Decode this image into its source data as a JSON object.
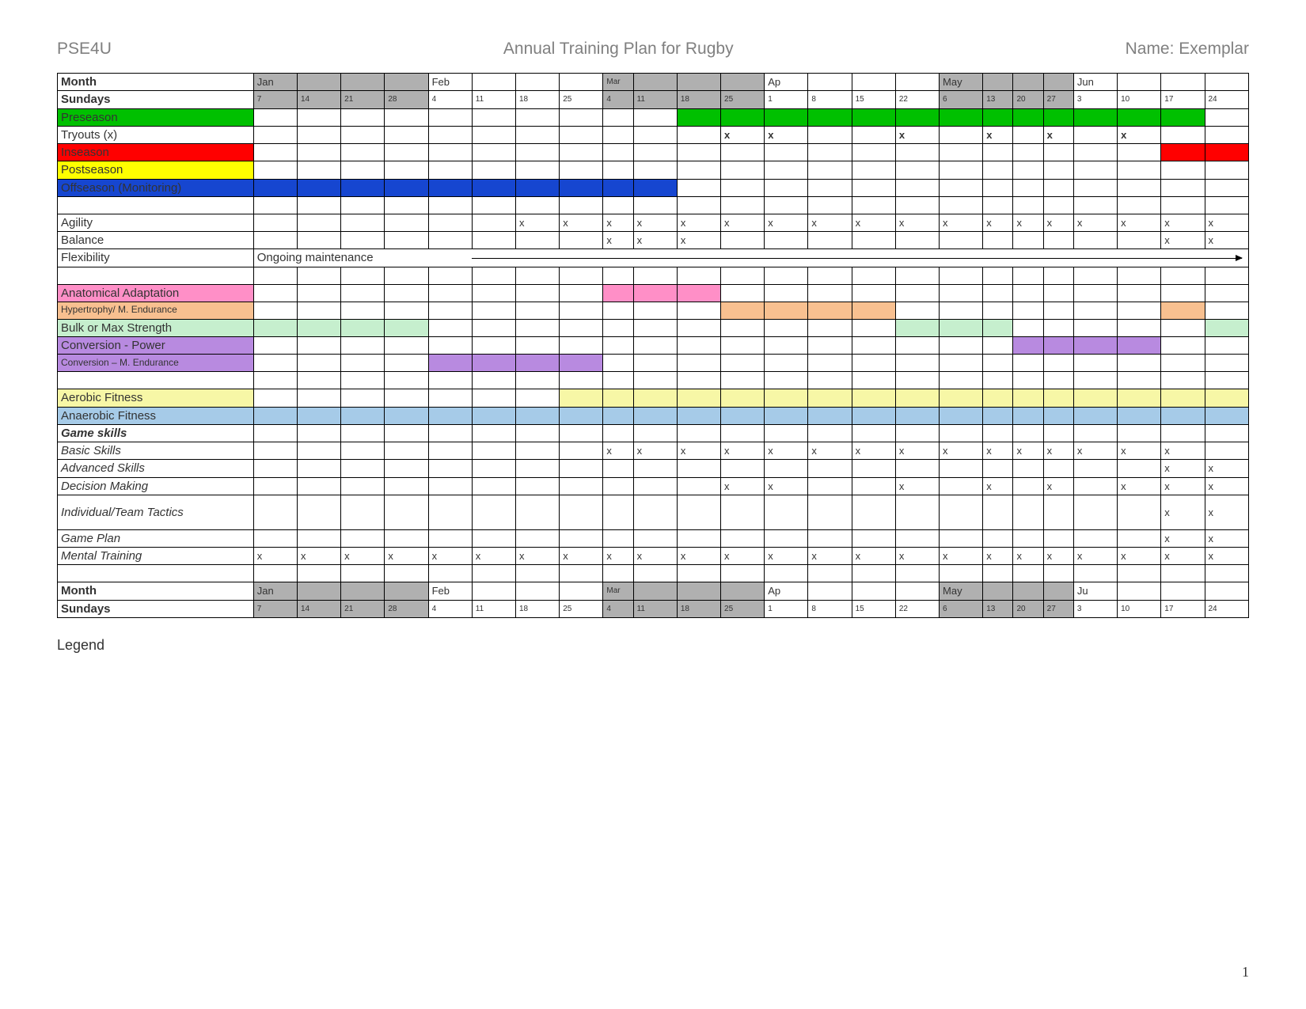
{
  "header": {
    "left": "PSE4U",
    "center": "Annual Training Plan for Rugby",
    "right": "Name: Exemplar"
  },
  "legend_label": "Legend",
  "page_number": "1",
  "colors": {
    "grey": "#b0b0b0",
    "green": "#00c000",
    "red": "#ff0000",
    "yellow": "#ffff00",
    "blue": "#1646d0",
    "pink": "#ff8fc7",
    "peach": "#f8c090",
    "mint": "#c6efce",
    "violet": "#b88ae0",
    "paleyellow": "#f7f7a6",
    "paleblue": "#a6cbe8",
    "white": "#ffffff"
  },
  "col_widths": [
    "cw",
    "cw",
    "cw",
    "cw",
    "cw",
    "cw",
    "cw",
    "cw",
    "nw",
    "cw",
    "cw",
    "cw",
    "cw",
    "cw",
    "cw",
    "cw",
    "cw",
    "nw",
    "nw",
    "nw",
    "cw",
    "cw",
    "cw",
    "cw"
  ],
  "month_row": {
    "label": "Month",
    "cells": [
      {
        "t": "Jan",
        "c": "grey"
      },
      {
        "t": "",
        "c": "grey"
      },
      {
        "t": "",
        "c": "grey"
      },
      {
        "t": "",
        "c": "grey"
      },
      {
        "t": "Feb"
      },
      {
        "t": ""
      },
      {
        "t": ""
      },
      {
        "t": ""
      },
      {
        "t": "Mar",
        "c": "grey",
        "wrap": true
      },
      {
        "t": "",
        "c": "grey"
      },
      {
        "t": "",
        "c": "grey"
      },
      {
        "t": "",
        "c": "grey"
      },
      {
        "t": "Ap"
      },
      {
        "t": ""
      },
      {
        "t": ""
      },
      {
        "t": ""
      },
      {
        "t": "May",
        "c": "grey"
      },
      {
        "t": "",
        "c": "grey"
      },
      {
        "t": "",
        "c": "grey"
      },
      {
        "t": "",
        "c": "grey"
      },
      {
        "t": "Jun"
      },
      {
        "t": ""
      },
      {
        "t": ""
      },
      {
        "t": ""
      }
    ]
  },
  "sundays_row": {
    "label": "Sundays",
    "cells": [
      {
        "t": "7",
        "c": "grey"
      },
      {
        "t": "14",
        "c": "grey"
      },
      {
        "t": "21",
        "c": "grey"
      },
      {
        "t": "28",
        "c": "grey"
      },
      {
        "t": "4"
      },
      {
        "t": "11"
      },
      {
        "t": "18"
      },
      {
        "t": "25"
      },
      {
        "t": "4",
        "c": "grey"
      },
      {
        "t": "11",
        "c": "grey"
      },
      {
        "t": "18",
        "c": "grey"
      },
      {
        "t": "25",
        "c": "grey"
      },
      {
        "t": "1"
      },
      {
        "t": "8"
      },
      {
        "t": "15"
      },
      {
        "t": "22"
      },
      {
        "t": "6",
        "c": "grey"
      },
      {
        "t": "13",
        "c": "grey"
      },
      {
        "t": "20",
        "c": "grey"
      },
      {
        "t": "27",
        "c": "grey"
      },
      {
        "t": "3"
      },
      {
        "t": "10"
      },
      {
        "t": "17"
      },
      {
        "t": "24"
      }
    ]
  },
  "month_row2": {
    "label": "Month",
    "cells": [
      {
        "t": "Jan",
        "c": "grey"
      },
      {
        "t": "",
        "c": "grey"
      },
      {
        "t": "",
        "c": "grey"
      },
      {
        "t": "",
        "c": "grey"
      },
      {
        "t": "Feb"
      },
      {
        "t": ""
      },
      {
        "t": ""
      },
      {
        "t": ""
      },
      {
        "t": "Mar",
        "c": "grey",
        "wrap": true
      },
      {
        "t": "",
        "c": "grey"
      },
      {
        "t": "",
        "c": "grey"
      },
      {
        "t": "",
        "c": "grey"
      },
      {
        "t": "Ap"
      },
      {
        "t": ""
      },
      {
        "t": ""
      },
      {
        "t": ""
      },
      {
        "t": "May",
        "c": "grey"
      },
      {
        "t": "",
        "c": "grey"
      },
      {
        "t": "",
        "c": "grey"
      },
      {
        "t": "",
        "c": "grey"
      },
      {
        "t": "Ju"
      },
      {
        "t": ""
      },
      {
        "t": ""
      },
      {
        "t": ""
      }
    ]
  },
  "rows": [
    {
      "name": "preseason",
      "label": "Preseason",
      "label_bg": "green",
      "cells_bg": {
        "10": "green",
        "11": "green",
        "12": "green",
        "13": "green",
        "14": "green",
        "15": "green",
        "16": "green",
        "17": "green",
        "18": "green",
        "19": "green",
        "20": "green",
        "21": "green",
        "22": "green"
      }
    },
    {
      "name": "tryouts",
      "label": "Tryouts (x)",
      "marks": {
        "11": "x",
        "12": "x",
        "15": "x",
        "17": "x",
        "19": "x",
        "21": "x"
      },
      "bold_marks": true
    },
    {
      "name": "inseason",
      "label": "Inseason",
      "label_bg": "red",
      "cells_bg": {
        "22": "red",
        "23": "red"
      }
    },
    {
      "name": "postseason",
      "label": "Postseason",
      "label_bg": "yellow"
    },
    {
      "name": "offseason",
      "label": "Offseason (Monitoring)",
      "label_bg": "blue",
      "cells_bg": {
        "0": "blue",
        "1": "blue",
        "2": "blue",
        "3": "blue",
        "4": "blue",
        "5": "blue",
        "6": "blue",
        "7": "blue",
        "8": "blue",
        "9": "blue"
      }
    },
    {
      "name": "spacer1",
      "label": ""
    },
    {
      "name": "agility",
      "label": "Agility",
      "marks": {
        "6": "x",
        "7": "x",
        "8": "x",
        "9": "x",
        "10": "x",
        "11": "x",
        "12": "x",
        "13": "x",
        "14": "x",
        "15": "x",
        "16": "x",
        "17": "x",
        "18": "x",
        "19": "x",
        "20": "x",
        "21": "x",
        "22": "x",
        "23": "x"
      }
    },
    {
      "name": "balance",
      "label": "Balance",
      "marks": {
        "8": "x",
        "9": "x",
        "10": "x",
        "22": "x",
        "23": "x"
      }
    },
    {
      "name": "flexibility",
      "label": "Flexibility",
      "span_text": "Ongoing maintenance",
      "span_from": 0,
      "span_to": 4,
      "arrow_from": 5,
      "arrow_to": 23
    },
    {
      "name": "spacer2",
      "label": ""
    },
    {
      "name": "anatomical",
      "label": "Anatomical Adaptation",
      "label_bg": "pink",
      "cells_bg": {
        "8": "pink",
        "9": "pink",
        "10": "pink"
      }
    },
    {
      "name": "hypertrophy",
      "label": "Hypertrophy/ M. Endurance",
      "label_bg": "peach",
      "label_small": true,
      "cells_bg": {
        "11": "peach",
        "12": "peach",
        "13": "peach",
        "14": "peach",
        "22": "peach"
      }
    },
    {
      "name": "bulk",
      "label": "Bulk or Max Strength",
      "label_bg": "mint",
      "cells_bg": {
        "0": "mint",
        "1": "mint",
        "2": "mint",
        "3": "mint",
        "15": "mint",
        "16": "mint",
        "17": "mint",
        "23": "mint"
      }
    },
    {
      "name": "conv-power",
      "label": "Conversion - Power",
      "label_bg": "violet",
      "cells_bg": {
        "18": "violet",
        "19": "violet",
        "20": "violet",
        "21": "violet"
      }
    },
    {
      "name": "conv-me",
      "label": "Conversion – M. Endurance",
      "label_bg": "violet",
      "label_small": true,
      "cells_bg": {
        "4": "violet",
        "5": "violet",
        "6": "violet",
        "7": "violet"
      }
    },
    {
      "name": "spacer3",
      "label": ""
    },
    {
      "name": "aerobic",
      "label": "Aerobic Fitness",
      "label_bg": "paleyellow",
      "cells_bg": {
        "7": "paleyellow",
        "8": "paleyellow",
        "9": "paleyellow",
        "10": "paleyellow",
        "11": "paleyellow",
        "12": "paleyellow",
        "13": "paleyellow",
        "14": "paleyellow",
        "15": "paleyellow",
        "16": "paleyellow",
        "17": "paleyellow",
        "18": "paleyellow",
        "19": "paleyellow",
        "20": "paleyellow",
        "21": "paleyellow",
        "22": "paleyellow",
        "23": "paleyellow"
      }
    },
    {
      "name": "anaerobic",
      "label": "Anaerobic Fitness",
      "label_bg": "paleblue",
      "cells_bg": {
        "0": "paleblue",
        "1": "paleblue",
        "2": "paleblue",
        "3": "paleblue",
        "4": "paleblue",
        "5": "paleblue",
        "6": "paleblue",
        "7": "paleblue",
        "8": "paleblue",
        "9": "paleblue",
        "10": "paleblue",
        "11": "paleblue",
        "12": "paleblue",
        "13": "paleblue",
        "14": "paleblue",
        "15": "paleblue",
        "16": "paleblue",
        "17": "paleblue",
        "18": "paleblue",
        "19": "paleblue",
        "20": "paleblue",
        "21": "paleblue",
        "22": "paleblue",
        "23": "paleblue"
      }
    },
    {
      "name": "gameskills",
      "label": "Game skills",
      "bold": true,
      "italic": true
    },
    {
      "name": "basic",
      "label": "Basic Skills",
      "italic": true,
      "marks": {
        "8": "x",
        "9": "x",
        "10": "x",
        "11": "x",
        "12": "x",
        "13": "x",
        "14": "x",
        "15": "x",
        "16": "x",
        "17": "x",
        "18": "x",
        "19": "x",
        "20": "x",
        "21": "x",
        "22": "x"
      }
    },
    {
      "name": "advanced",
      "label": "Advanced Skills",
      "italic": true,
      "marks": {
        "22": "x",
        "23": "x"
      }
    },
    {
      "name": "decision",
      "label": "Decision Making",
      "italic": true,
      "marks": {
        "11": "x",
        "12": "x",
        "15": "x",
        "17": "x",
        "19": "x",
        "21": "x",
        "22": "x",
        "23": "x"
      }
    },
    {
      "name": "tactics",
      "label": "Individual/Team Tactics",
      "italic": true,
      "tall": true,
      "marks": {
        "22": "x",
        "23": "x"
      }
    },
    {
      "name": "gameplan",
      "label": "Game Plan",
      "italic": true,
      "marks": {
        "22": "x",
        "23": "x"
      }
    },
    {
      "name": "mental",
      "label": "Mental Training",
      "italic": true,
      "marks": {
        "0": "x",
        "1": "x",
        "2": "x",
        "3": "x",
        "4": "x",
        "5": "x",
        "6": "x",
        "7": "x",
        "8": "x",
        "9": "x",
        "10": "x",
        "11": "x",
        "12": "x",
        "13": "x",
        "14": "x",
        "15": "x",
        "16": "x",
        "17": "x",
        "18": "x",
        "19": "x",
        "20": "x",
        "21": "x",
        "22": "x",
        "23": "x"
      }
    },
    {
      "name": "spacer4",
      "label": ""
    }
  ]
}
